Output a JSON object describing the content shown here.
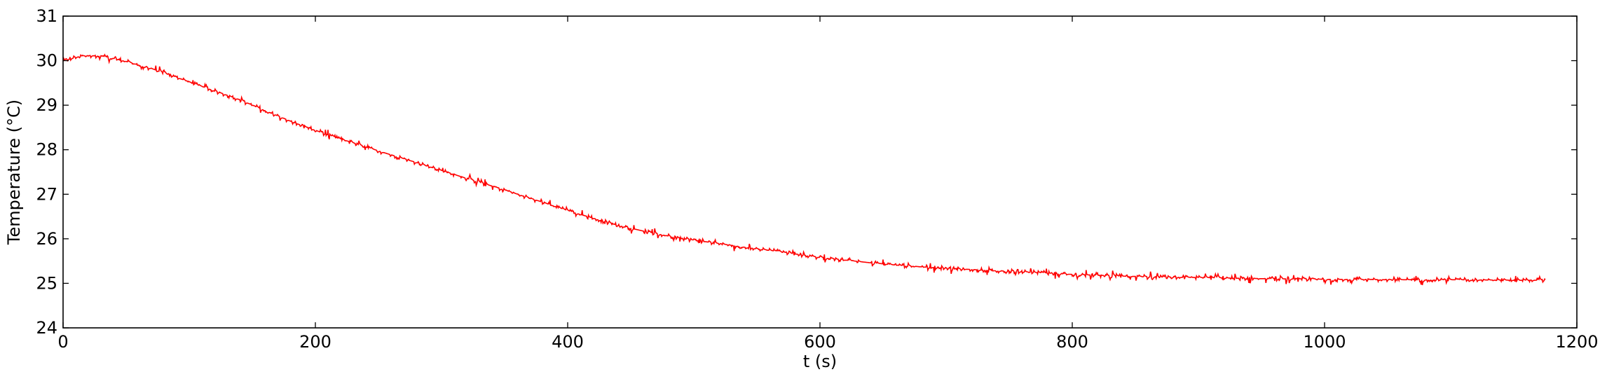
{
  "chart_data": {
    "type": "line",
    "title": "",
    "xlabel": "t (s)",
    "ylabel": "Temperature (°C)",
    "xlim": [
      0,
      1200
    ],
    "ylim": [
      24,
      31
    ],
    "xticks": [
      0,
      200,
      400,
      600,
      800,
      1000,
      1200
    ],
    "yticks": [
      24,
      25,
      26,
      27,
      28,
      29,
      30,
      31
    ],
    "grid": false,
    "series": [
      {
        "color": "#ff0000",
        "noise_amplitude": 0.06,
        "x": [
          0,
          10,
          20,
          30,
          40,
          50,
          60,
          70,
          80,
          90,
          100,
          110,
          120,
          130,
          140,
          150,
          160,
          170,
          180,
          190,
          200,
          220,
          240,
          260,
          280,
          300,
          320,
          340,
          360,
          380,
          400,
          420,
          440,
          460,
          480,
          500,
          520,
          540,
          560,
          580,
          600,
          620,
          640,
          660,
          680,
          700,
          720,
          740,
          760,
          780,
          800,
          820,
          840,
          860,
          880,
          900,
          920,
          940,
          960,
          980,
          1000,
          1050,
          1100,
          1150,
          1175
        ],
        "y": [
          30.0,
          30.08,
          30.12,
          30.1,
          30.05,
          29.98,
          29.9,
          29.82,
          29.72,
          29.62,
          29.52,
          29.42,
          29.32,
          29.22,
          29.12,
          29.0,
          28.88,
          28.76,
          28.64,
          28.53,
          28.43,
          28.24,
          28.06,
          27.88,
          27.71,
          27.53,
          27.35,
          27.18,
          27.0,
          26.82,
          26.63,
          26.46,
          26.3,
          26.17,
          26.06,
          25.97,
          25.89,
          25.81,
          25.74,
          25.66,
          25.58,
          25.52,
          25.46,
          25.41,
          25.37,
          25.34,
          25.31,
          25.28,
          25.26,
          25.23,
          25.2,
          25.18,
          25.16,
          25.15,
          25.14,
          25.13,
          25.12,
          25.11,
          25.1,
          25.1,
          25.09,
          25.08,
          25.08,
          25.07,
          25.07
        ]
      }
    ]
  }
}
